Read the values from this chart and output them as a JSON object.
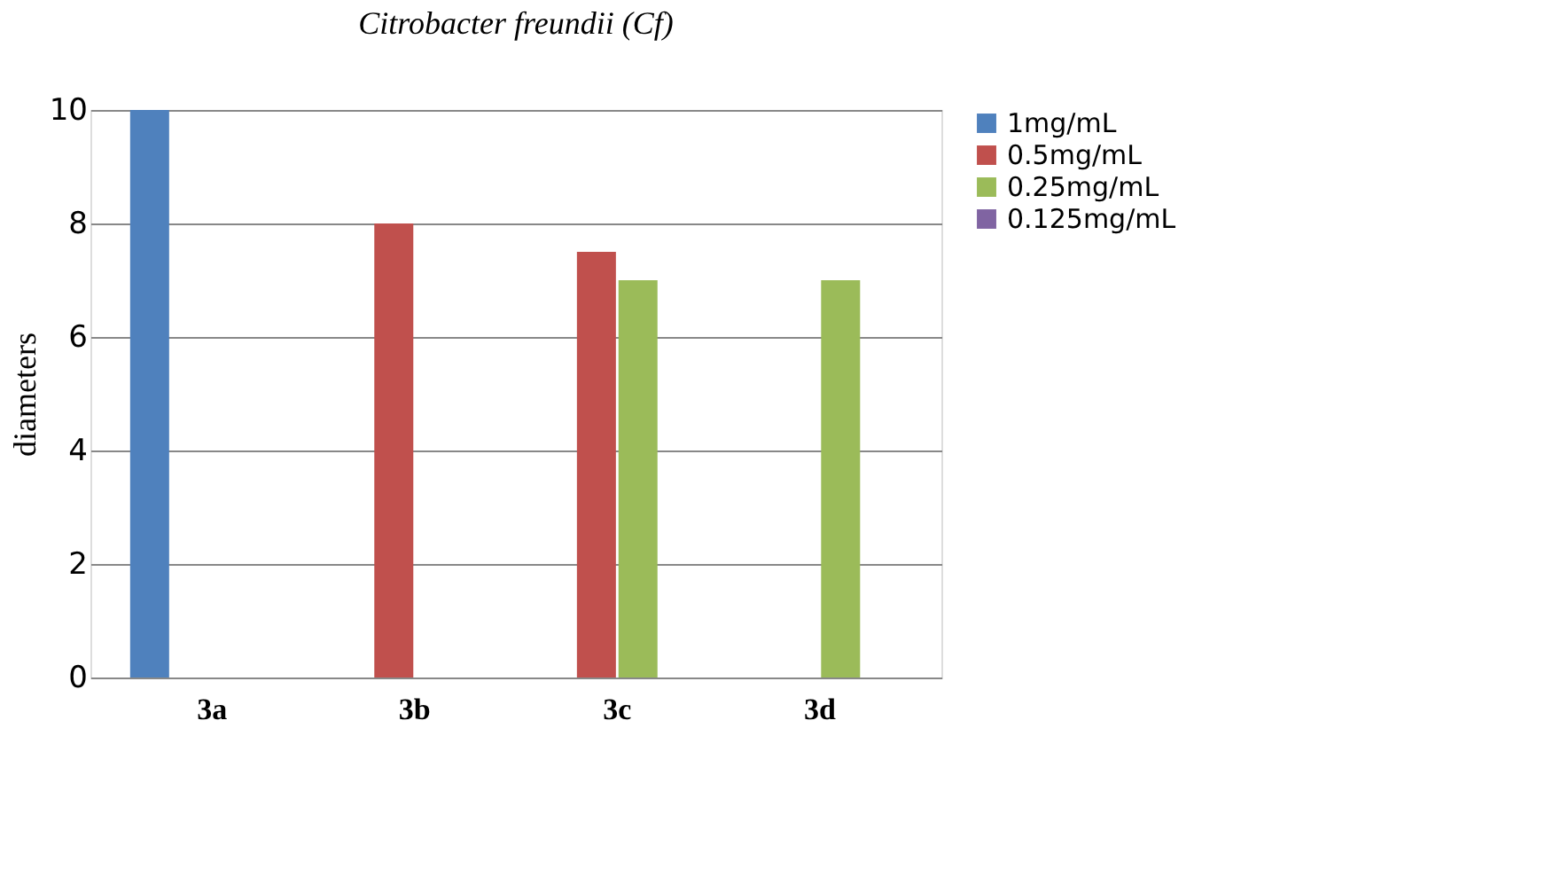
{
  "chart_data": {
    "type": "bar",
    "title": "Citrobacter freundii (Cf)",
    "ylabel": "diameters",
    "categories": [
      "3a",
      "3b",
      "3c",
      "3d"
    ],
    "series": [
      {
        "name": "1mg/mL",
        "color": "#4f81bd",
        "values": [
          10,
          0,
          0,
          0
        ]
      },
      {
        "name": "0.5mg/mL",
        "color": "#c0504d",
        "values": [
          0,
          8,
          7.5,
          0
        ]
      },
      {
        "name": "0.25mg/mL",
        "color": "#9bbb59",
        "values": [
          0,
          0,
          7,
          7
        ]
      },
      {
        "name": "0.125mg/mL",
        "color": "#8064a2",
        "values": [
          0,
          0,
          0,
          0
        ]
      }
    ],
    "ylim": [
      0,
      10
    ],
    "yticks": [
      0,
      2,
      4,
      6,
      8,
      10
    ],
    "grid": "y",
    "legend": "right"
  }
}
